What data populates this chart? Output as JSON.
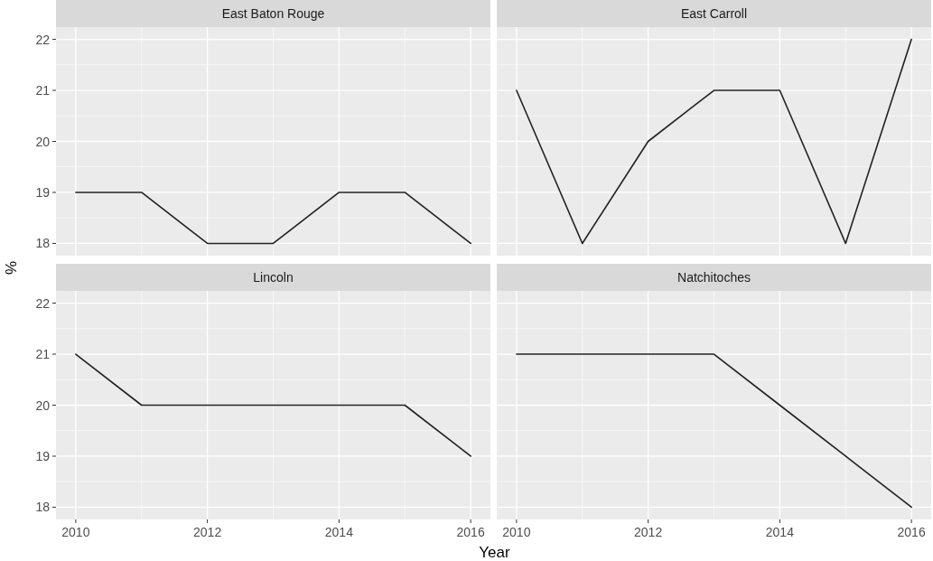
{
  "chart_data": [
    {
      "type": "line",
      "title": "East Baton Rouge",
      "ylabel": "%",
      "x": [
        2010,
        2011,
        2012,
        2013,
        2014,
        2015,
        2016
      ],
      "series": [
        {
          "color": "#222222",
          "values": [
            19,
            19,
            18,
            18,
            19,
            19,
            18
          ]
        }
      ],
      "xlim": [
        2009.7,
        2016.3
      ],
      "ylim": [
        17.76,
        22.24
      ],
      "xticks": [
        2010,
        2012,
        2014,
        2016
      ],
      "yticks": [
        18,
        19,
        20,
        21,
        22
      ],
      "grid": true,
      "tick_labels": "y"
    },
    {
      "type": "line",
      "title": "East Carroll",
      "x": [
        2010,
        2011,
        2012,
        2013,
        2014,
        2015,
        2016
      ],
      "series": [
        {
          "color": "#222222",
          "values": [
            21,
            18,
            20,
            21,
            21,
            18,
            22
          ]
        }
      ],
      "xlim": [
        2009.7,
        2016.3
      ],
      "ylim": [
        17.76,
        22.24
      ],
      "xticks": [
        2010,
        2012,
        2014,
        2016
      ],
      "yticks": [
        18,
        19,
        20,
        21,
        22
      ],
      "grid": true,
      "tick_labels": false
    },
    {
      "type": "line",
      "title": "Lincoln",
      "xlabel": "Year",
      "x": [
        2010,
        2011,
        2012,
        2013,
        2014,
        2015,
        2016
      ],
      "series": [
        {
          "color": "#222222",
          "values": [
            21,
            20,
            20,
            20,
            20,
            20,
            19
          ]
        }
      ],
      "xlim": [
        2009.7,
        2016.3
      ],
      "ylim": [
        17.76,
        22.24
      ],
      "xticks": [
        2010,
        2012,
        2014,
        2016
      ],
      "yticks": [
        18,
        19,
        20,
        21,
        22
      ],
      "grid": true
    },
    {
      "type": "line",
      "title": "Natchitoches",
      "x": [
        2010,
        2011,
        2012,
        2013,
        2014,
        2015,
        2016
      ],
      "series": [
        {
          "color": "#222222",
          "values": [
            21,
            21,
            21,
            21,
            20,
            19,
            18
          ]
        }
      ],
      "xlim": [
        2009.7,
        2016.3
      ],
      "ylim": [
        17.76,
        22.24
      ],
      "xticks": [
        2010,
        2012,
        2014,
        2016
      ],
      "yticks": [
        18,
        19,
        20,
        21,
        22
      ],
      "grid": true,
      "tick_labels": "x"
    }
  ]
}
